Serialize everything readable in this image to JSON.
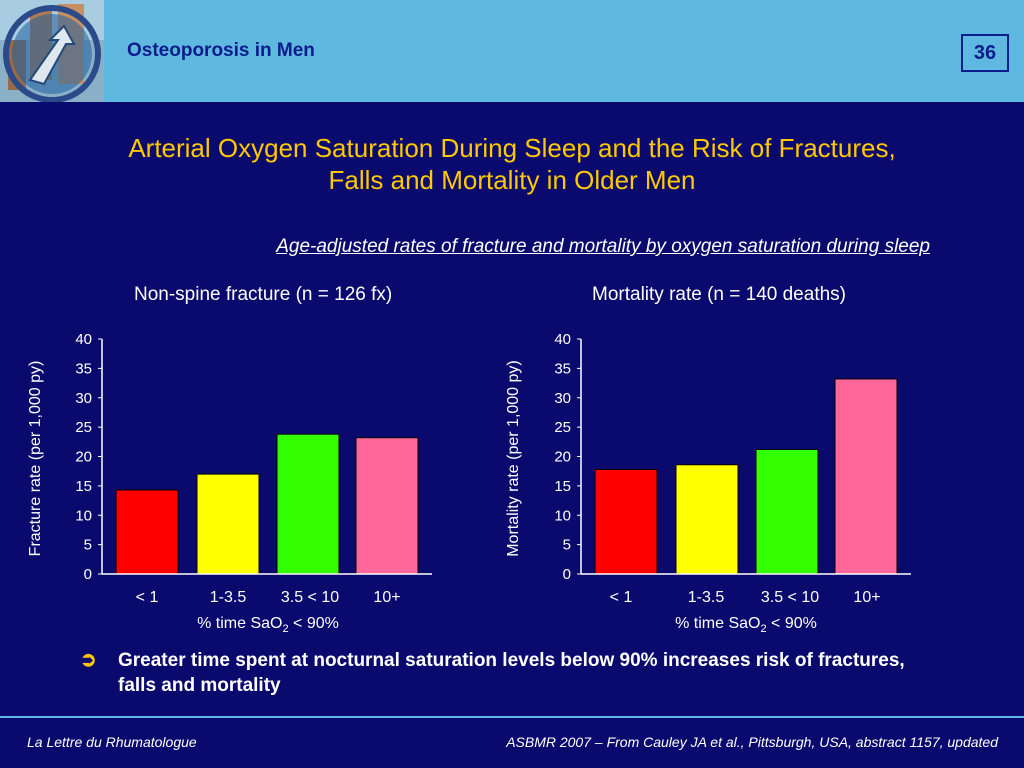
{
  "header": {
    "title": "Osteoporosis in Men",
    "slide_number": "36"
  },
  "title_line1": "Arterial Oxygen Saturation During Sleep and the Risk of Fractures,",
  "title_line2": "Falls and Mortality in Older Men",
  "subtitle": "Age-adjusted rates of fracture and mortality by oxygen saturation during sleep",
  "bullet": "Greater time spent at nocturnal saturation levels below 90% increases risk of fractures, falls and mortality",
  "footer": {
    "left": "La Lettre du Rhumatologue",
    "right": "ASBMR 2007 – From Cauley JA et al., Pittsburgh, USA, abstract 1157, updated"
  },
  "colors": {
    "background": "#0a0a6e",
    "header": "#5eb8e0",
    "title": "#ffc800"
  },
  "chart_data": [
    {
      "type": "bar",
      "title": "Non-spine fracture (n = 126 fx)",
      "categories": [
        "< 1",
        "1-3.5",
        "3.5 < 10",
        "10+"
      ],
      "values": [
        14.3,
        17,
        23.8,
        23.2
      ],
      "colors": [
        "#ff0000",
        "#ffff00",
        "#33ff00",
        "#ff6699"
      ],
      "xlabel": "% time SaO",
      "xlabel_sub": "2",
      "xlabel_tail": " < 90%",
      "ylabel": "Fracture rate (per 1,000 py)",
      "ylim": [
        0,
        40
      ],
      "yticks": [
        0,
        5,
        10,
        15,
        20,
        25,
        30,
        35,
        40
      ]
    },
    {
      "type": "bar",
      "title": "Mortality rate (n = 140 deaths)",
      "categories": [
        "< 1",
        "1-3.5",
        "3.5 < 10",
        "10+"
      ],
      "values": [
        17.8,
        18.6,
        21.2,
        33.2
      ],
      "colors": [
        "#ff0000",
        "#ffff00",
        "#33ff00",
        "#ff6699"
      ],
      "xlabel": "% time SaO",
      "xlabel_sub": "2",
      "xlabel_tail": " < 90%",
      "ylabel": "Mortality rate (per 1,000 py)",
      "ylim": [
        0,
        40
      ],
      "yticks": [
        0,
        5,
        10,
        15,
        20,
        25,
        30,
        35,
        40
      ]
    }
  ]
}
